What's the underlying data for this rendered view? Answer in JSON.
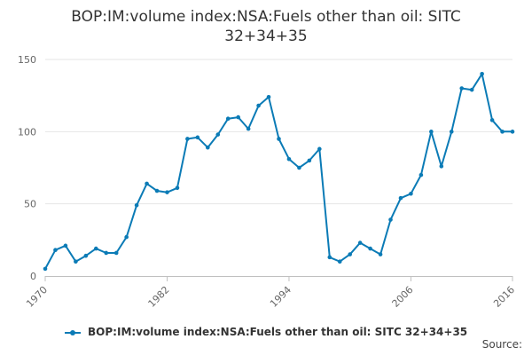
{
  "chart_data": {
    "type": "line",
    "title_lines": [
      "BOP:IM:volume index:NSA:Fuels other than oil: SITC",
      "32+34+35"
    ],
    "xlabel": "",
    "ylabel": "",
    "ylim": [
      0,
      150
    ],
    "xlim": [
      1970,
      2016
    ],
    "y_ticks": [
      0,
      50,
      100,
      150
    ],
    "x_ticks": [
      1970,
      1982,
      1994,
      2006,
      2016
    ],
    "grid": "horizontal",
    "legend_position": "bottom",
    "series": [
      {
        "name": "BOP:IM:volume index:NSA:Fuels other than oil: SITC 32+34+35",
        "color": "#0b7bb6",
        "x": [
          1970,
          1971,
          1972,
          1973,
          1974,
          1975,
          1976,
          1977,
          1978,
          1979,
          1980,
          1981,
          1982,
          1983,
          1984,
          1985,
          1986,
          1987,
          1988,
          1989,
          1990,
          1991,
          1992,
          1993,
          1994,
          1995,
          1996,
          1997,
          1998,
          1999,
          2000,
          2001,
          2002,
          2003,
          2004,
          2005,
          2006,
          2007,
          2008,
          2009,
          2010,
          2011,
          2012,
          2013,
          2014,
          2015,
          2016
        ],
        "values": [
          5,
          18,
          21,
          10,
          14,
          19,
          16,
          16,
          27,
          49,
          64,
          59,
          58,
          61,
          95,
          96,
          89,
          98,
          109,
          110,
          102,
          118,
          124,
          95,
          81,
          75,
          80,
          88,
          13,
          10,
          15,
          23,
          19,
          15,
          39,
          54,
          57,
          70,
          100,
          76,
          100,
          130,
          129,
          140,
          108,
          100,
          100
        ]
      }
    ]
  },
  "legend_label": "BOP:IM:volume index:NSA:Fuels other than oil: SITC 32+34+35",
  "source_label": "Source:"
}
